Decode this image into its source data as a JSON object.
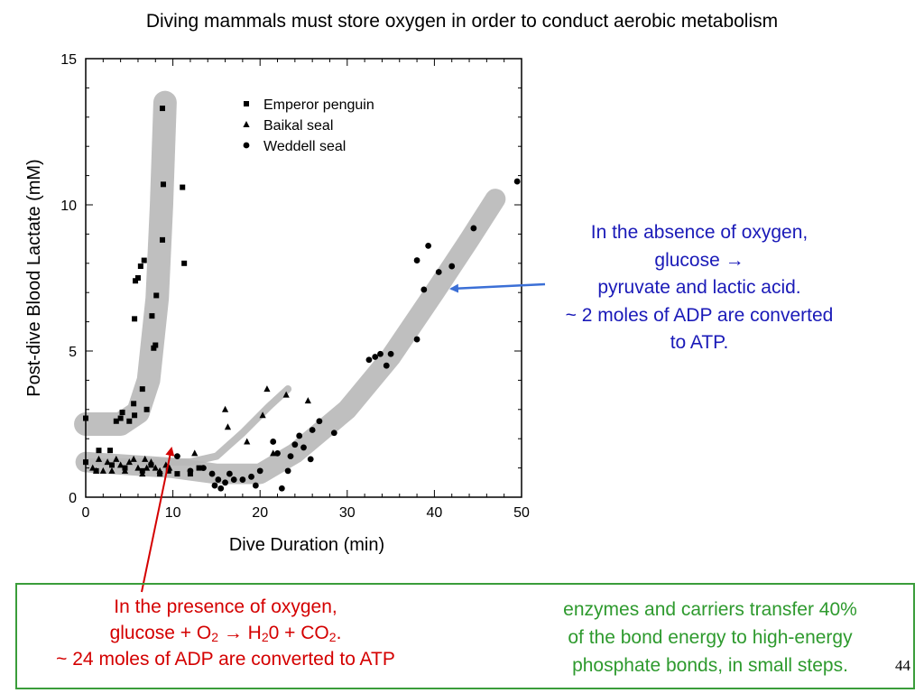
{
  "slide": {
    "title": "Diving mammals must store oxygen in order to conduct aerobic metabolism",
    "page_number": "44"
  },
  "absence_note": {
    "line1": "In the absence of oxygen,",
    "line2": "glucose →",
    "line3": "pyruvate and lactic acid.",
    "line4": "~ 2 moles of ADP are converted",
    "line5": "to ATP."
  },
  "presence_note": {
    "line1": "In the presence of oxygen,",
    "line2_a": "glucose + O",
    "line2_sub1": "2",
    "line2_b": " → H",
    "line2_sub2": "2",
    "line2_c": "0 + CO",
    "line2_sub3": "2",
    "line2_d": ".",
    "line3": "~ 24 moles of ADP are converted to ATP"
  },
  "enzymes_note": {
    "line1": "enzymes and carriers transfer 40%",
    "line2": "of the bond energy to high-energy",
    "line3": "phosphate bonds, in small steps."
  },
  "colors": {
    "absence_text": "#1a1ab8",
    "presence_text": "#d40000",
    "enzymes_text": "#2e9a2e",
    "box_border": "#3a9d3a",
    "band": "#b8b8b8"
  },
  "chart_data": {
    "type": "scatter",
    "xlabel": "Dive Duration  (min)",
    "ylabel": "Post-dive Blood Lactate  (mM)",
    "xlim": [
      0,
      50
    ],
    "ylim": [
      0,
      15
    ],
    "xticks": [
      "0",
      "10",
      "20",
      "30",
      "40",
      "50"
    ],
    "yticks": [
      "0",
      "5",
      "10",
      "15"
    ],
    "grid": false,
    "legend_position": "top-center",
    "series": [
      {
        "name": "Emperor penguin",
        "marker": "square",
        "points": [
          [
            0,
            2.7
          ],
          [
            0,
            1.2
          ],
          [
            1.5,
            1.6
          ],
          [
            2.8,
            1.6
          ],
          [
            3.5,
            2.6
          ],
          [
            4,
            2.7
          ],
          [
            4.2,
            2.9
          ],
          [
            5,
            2.6
          ],
          [
            5.5,
            3.2
          ],
          [
            5.6,
            2.8
          ],
          [
            5.6,
            6.1
          ],
          [
            5.7,
            7.4
          ],
          [
            6,
            7.5
          ],
          [
            6.3,
            7.9
          ],
          [
            6.5,
            3.7
          ],
          [
            6.7,
            8.1
          ],
          [
            7,
            3.0
          ],
          [
            7.6,
            6.2
          ],
          [
            7.8,
            5.1
          ],
          [
            8,
            5.2
          ],
          [
            8.1,
            6.9
          ],
          [
            8.8,
            13.3
          ],
          [
            8.9,
            10.7
          ],
          [
            8.8,
            8.8
          ],
          [
            11.1,
            10.6
          ],
          [
            11.3,
            8.0
          ],
          [
            1.2,
            0.9
          ],
          [
            3,
            1.1
          ],
          [
            4.5,
            1.0
          ],
          [
            6.5,
            0.9
          ],
          [
            7.5,
            1.1
          ],
          [
            8.5,
            0.8
          ],
          [
            9.5,
            0.9
          ],
          [
            10.5,
            0.8
          ],
          [
            12,
            0.8
          ],
          [
            13,
            1.0
          ]
        ]
      },
      {
        "name": "Baikal seal",
        "marker": "triangle",
        "points": [
          [
            0.8,
            1.0
          ],
          [
            1.2,
            0.9
          ],
          [
            1.5,
            1.3
          ],
          [
            2,
            0.9
          ],
          [
            2.5,
            1.2
          ],
          [
            3,
            0.9
          ],
          [
            3.5,
            1.3
          ],
          [
            4,
            1.1
          ],
          [
            4.5,
            0.9
          ],
          [
            5,
            1.2
          ],
          [
            5.5,
            1.3
          ],
          [
            6,
            1.0
          ],
          [
            6.5,
            0.8
          ],
          [
            6.8,
            1.3
          ],
          [
            7,
            1.0
          ],
          [
            7.5,
            1.2
          ],
          [
            8,
            1.0
          ],
          [
            8.5,
            0.9
          ],
          [
            9.2,
            1.1
          ],
          [
            9.6,
            1.0
          ],
          [
            12.5,
            1.5
          ],
          [
            16,
            3.0
          ],
          [
            16.3,
            2.4
          ],
          [
            18.5,
            1.9
          ],
          [
            20.3,
            2.8
          ],
          [
            20.8,
            3.7
          ],
          [
            21.5,
            1.5
          ],
          [
            23,
            3.5
          ],
          [
            25.5,
            3.3
          ]
        ]
      },
      {
        "name": "Weddell seal",
        "marker": "circle",
        "points": [
          [
            10.5,
            1.4
          ],
          [
            12,
            0.9
          ],
          [
            13.5,
            1.0
          ],
          [
            14.5,
            0.8
          ],
          [
            14.8,
            0.4
          ],
          [
            15.2,
            0.6
          ],
          [
            15.5,
            0.3
          ],
          [
            16,
            0.5
          ],
          [
            16.5,
            0.8
          ],
          [
            17,
            0.6
          ],
          [
            18,
            0.6
          ],
          [
            19,
            0.7
          ],
          [
            19.5,
            0.4
          ],
          [
            20,
            0.9
          ],
          [
            21.5,
            1.9
          ],
          [
            22,
            1.5
          ],
          [
            22.5,
            0.3
          ],
          [
            23.2,
            0.9
          ],
          [
            23.5,
            1.4
          ],
          [
            24,
            1.8
          ],
          [
            24.5,
            2.1
          ],
          [
            25,
            1.7
          ],
          [
            26,
            2.3
          ],
          [
            26.8,
            2.6
          ],
          [
            25.8,
            1.3
          ],
          [
            28.5,
            2.2
          ],
          [
            32.5,
            4.7
          ],
          [
            33.2,
            4.8
          ],
          [
            33.8,
            4.9
          ],
          [
            34.5,
            4.5
          ],
          [
            35,
            4.9
          ],
          [
            38,
            5.4
          ],
          [
            38,
            8.1
          ],
          [
            38.8,
            7.1
          ],
          [
            39.3,
            8.6
          ],
          [
            40.5,
            7.7
          ],
          [
            42,
            7.9
          ],
          [
            44.5,
            9.2
          ],
          [
            49.5,
            10.8
          ]
        ]
      }
    ],
    "trend_bands": [
      {
        "points": [
          [
            0,
            2.5
          ],
          [
            4,
            2.5
          ],
          [
            6,
            2.9
          ],
          [
            7.2,
            4.0
          ],
          [
            8.2,
            6.8
          ],
          [
            8.7,
            10.0
          ],
          [
            9.1,
            13.5
          ]
        ],
        "width": 0.8
      },
      {
        "points": [
          [
            0,
            1.2
          ],
          [
            12,
            1.2
          ],
          [
            15,
            1.4
          ],
          [
            18,
            2.2
          ],
          [
            21,
            3.1
          ],
          [
            23.2,
            3.7
          ]
        ],
        "width": 0.25
      },
      {
        "points": [
          [
            0,
            1.2
          ],
          [
            10,
            1.0
          ],
          [
            15,
            0.8
          ],
          [
            20,
            0.8
          ],
          [
            24,
            1.5
          ],
          [
            30,
            3.0
          ],
          [
            35,
            4.8
          ],
          [
            40,
            7.0
          ],
          [
            44,
            8.8
          ],
          [
            47,
            10.2
          ]
        ],
        "width": 0.7
      }
    ]
  }
}
